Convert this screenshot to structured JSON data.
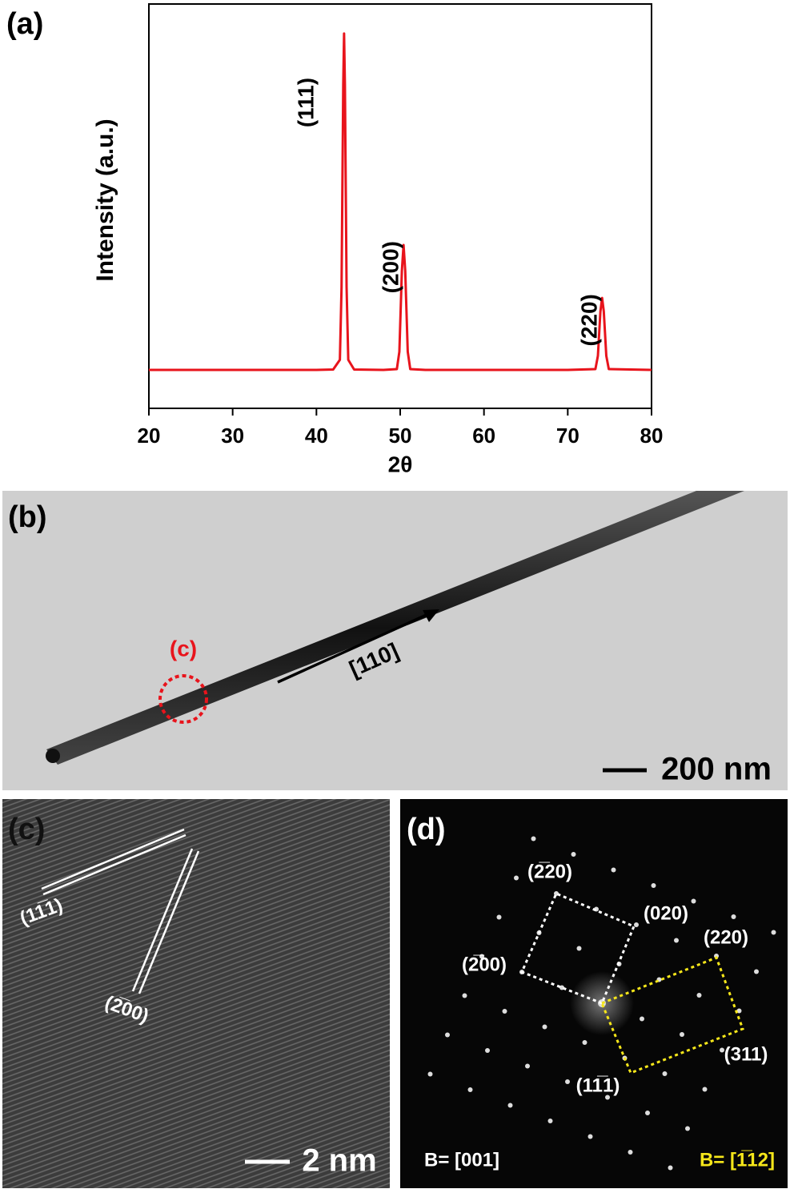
{
  "chart_data": {
    "type": "line",
    "panel_label": "(a)",
    "x_label": "2θ",
    "y_label": "Intensity (a.u.)",
    "x": [
      20,
      30,
      40,
      42,
      42.8,
      43.0,
      43.2,
      43.3,
      43.4,
      43.6,
      43.8,
      44.5,
      48,
      49.6,
      49.9,
      50.2,
      50.4,
      50.6,
      50.9,
      51.2,
      53,
      70,
      73.3,
      73.6,
      73.9,
      74.1,
      74.3,
      74.6,
      74.9,
      80
    ],
    "values": [
      9.5,
      9.5,
      9.5,
      9.6,
      12,
      30,
      80,
      92.7,
      80,
      30,
      12,
      9.6,
      9.5,
      9.7,
      14,
      34,
      40.4,
      34,
      14,
      9.7,
      9.5,
      9.5,
      9.7,
      13,
      24,
      27.3,
      24,
      13,
      9.7,
      9.5
    ],
    "color": "#e8141c",
    "xlim": [
      20,
      80
    ],
    "xticks": [
      20,
      30,
      40,
      50,
      60,
      70,
      80
    ],
    "ylim": [
      0,
      100
    ],
    "annotations": [
      "(111)",
      "(200)",
      "(220)"
    ]
  },
  "panels": {
    "b": {
      "label": "(b)",
      "region_label": "(c)",
      "direction": "[110]",
      "scale_bar": "200 nm"
    },
    "c": {
      "label": "(c)",
      "planes": [
        "(11̅1)",
        "(2̅00)"
      ],
      "scale_bar": "2 nm"
    },
    "d": {
      "label": "(d)",
      "spots": [
        "(2̅20)",
        "(020)",
        "(220)",
        "(2̅00)",
        "(311)",
        "(11̅1)"
      ],
      "zone_white": "B= [001]",
      "zone_yellow": "B= [1̅12]"
    }
  }
}
